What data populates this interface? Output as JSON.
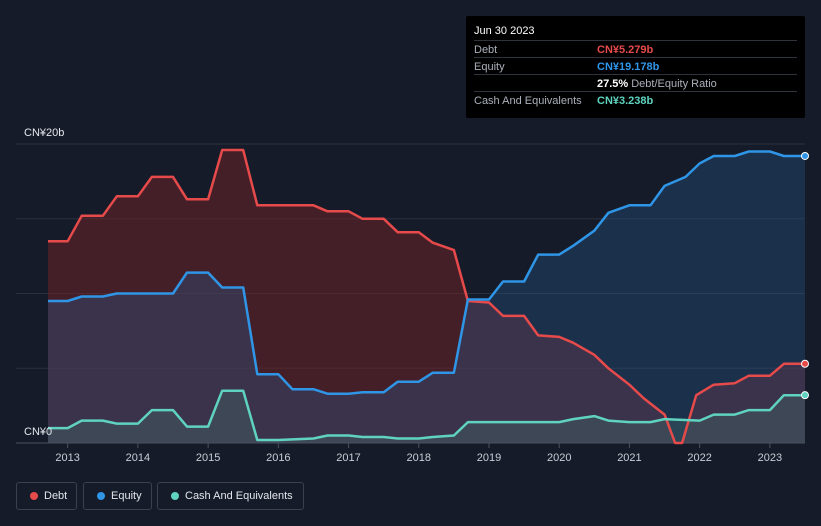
{
  "tooltip": {
    "date": "Jun 30 2023",
    "rows": [
      {
        "label": "Debt",
        "value": "CN¥5.279b",
        "color": "#e64a4a",
        "extra": ""
      },
      {
        "label": "Equity",
        "value": "CN¥19.178b",
        "color": "#2f95e6",
        "extra": ""
      },
      {
        "label": "",
        "value": "27.5%",
        "color": "#ffffff",
        "extra": "Debt/Equity Ratio"
      },
      {
        "label": "Cash And Equivalents",
        "value": "CN¥3.238b",
        "color": "#5fd3c0",
        "extra": ""
      }
    ]
  },
  "legend": [
    {
      "label": "Debt",
      "color": "#e64a4a"
    },
    {
      "label": "Equity",
      "color": "#2f95e6"
    },
    {
      "label": "Cash And Equivalents",
      "color": "#5fd3c0"
    }
  ],
  "chart_data": {
    "type": "area",
    "y_top_label": "CN¥20b",
    "y_bottom_label": "CN¥0",
    "ylim": [
      0,
      20
    ],
    "xlim": [
      2012.72,
      2023.5
    ],
    "x_ticks": [
      "2013",
      "2014",
      "2015",
      "2016",
      "2017",
      "2018",
      "2019",
      "2020",
      "2021",
      "2022",
      "2023"
    ],
    "grid": true,
    "legend_position": "bottom-left",
    "series": [
      {
        "name": "Debt",
        "color": "#e64a4a",
        "points": [
          [
            2012.72,
            13.5
          ],
          [
            2013.0,
            13.5
          ],
          [
            2013.2,
            15.2
          ],
          [
            2013.5,
            15.2
          ],
          [
            2013.7,
            16.5
          ],
          [
            2014.0,
            16.5
          ],
          [
            2014.2,
            17.8
          ],
          [
            2014.5,
            17.8
          ],
          [
            2014.7,
            16.3
          ],
          [
            2015.0,
            16.3
          ],
          [
            2015.2,
            19.6
          ],
          [
            2015.5,
            19.6
          ],
          [
            2015.7,
            15.9
          ],
          [
            2016.0,
            15.9
          ],
          [
            2016.5,
            15.9
          ],
          [
            2016.7,
            15.5
          ],
          [
            2017.0,
            15.5
          ],
          [
            2017.2,
            15.0
          ],
          [
            2017.5,
            15.0
          ],
          [
            2017.7,
            14.1
          ],
          [
            2018.0,
            14.1
          ],
          [
            2018.2,
            13.4
          ],
          [
            2018.5,
            12.9
          ],
          [
            2018.7,
            9.5
          ],
          [
            2019.0,
            9.4
          ],
          [
            2019.2,
            8.5
          ],
          [
            2019.5,
            8.5
          ],
          [
            2019.7,
            7.2
          ],
          [
            2020.0,
            7.1
          ],
          [
            2020.2,
            6.7
          ],
          [
            2020.5,
            5.9
          ],
          [
            2020.7,
            5.0
          ],
          [
            2021.0,
            3.9
          ],
          [
            2021.2,
            3.0
          ],
          [
            2021.5,
            1.9
          ],
          [
            2021.65,
            0.0
          ],
          [
            2021.75,
            0.0
          ],
          [
            2021.95,
            3.2
          ],
          [
            2022.2,
            3.9
          ],
          [
            2022.5,
            4.0
          ],
          [
            2022.7,
            4.5
          ],
          [
            2023.0,
            4.5
          ],
          [
            2023.2,
            5.3
          ],
          [
            2023.5,
            5.3
          ]
        ]
      },
      {
        "name": "Equity",
        "color": "#2f95e6",
        "points": [
          [
            2012.72,
            9.5
          ],
          [
            2013.0,
            9.5
          ],
          [
            2013.2,
            9.8
          ],
          [
            2013.5,
            9.8
          ],
          [
            2013.7,
            10.0
          ],
          [
            2014.0,
            10.0
          ],
          [
            2014.5,
            10.0
          ],
          [
            2014.7,
            11.4
          ],
          [
            2015.0,
            11.4
          ],
          [
            2015.2,
            10.4
          ],
          [
            2015.5,
            10.4
          ],
          [
            2015.7,
            4.6
          ],
          [
            2016.0,
            4.6
          ],
          [
            2016.2,
            3.6
          ],
          [
            2016.5,
            3.6
          ],
          [
            2016.7,
            3.3
          ],
          [
            2017.0,
            3.3
          ],
          [
            2017.2,
            3.4
          ],
          [
            2017.5,
            3.4
          ],
          [
            2017.7,
            4.1
          ],
          [
            2018.0,
            4.1
          ],
          [
            2018.2,
            4.7
          ],
          [
            2018.5,
            4.7
          ],
          [
            2018.7,
            9.6
          ],
          [
            2019.0,
            9.6
          ],
          [
            2019.2,
            10.8
          ],
          [
            2019.5,
            10.8
          ],
          [
            2019.7,
            12.6
          ],
          [
            2020.0,
            12.6
          ],
          [
            2020.2,
            13.2
          ],
          [
            2020.5,
            14.2
          ],
          [
            2020.7,
            15.4
          ],
          [
            2021.0,
            15.9
          ],
          [
            2021.3,
            15.9
          ],
          [
            2021.5,
            17.2
          ],
          [
            2021.8,
            17.8
          ],
          [
            2022.0,
            18.7
          ],
          [
            2022.2,
            19.2
          ],
          [
            2022.5,
            19.2
          ],
          [
            2022.7,
            19.5
          ],
          [
            2023.0,
            19.5
          ],
          [
            2023.2,
            19.2
          ],
          [
            2023.5,
            19.2
          ]
        ]
      },
      {
        "name": "Cash And Equivalents",
        "color": "#5fd3c0",
        "points": [
          [
            2012.72,
            1.0
          ],
          [
            2013.0,
            1.0
          ],
          [
            2013.2,
            1.5
          ],
          [
            2013.5,
            1.5
          ],
          [
            2013.7,
            1.3
          ],
          [
            2014.0,
            1.3
          ],
          [
            2014.2,
            2.2
          ],
          [
            2014.5,
            2.2
          ],
          [
            2014.7,
            1.1
          ],
          [
            2015.0,
            1.1
          ],
          [
            2015.2,
            3.5
          ],
          [
            2015.5,
            3.5
          ],
          [
            2015.7,
            0.2
          ],
          [
            2016.0,
            0.2
          ],
          [
            2016.5,
            0.3
          ],
          [
            2016.7,
            0.5
          ],
          [
            2017.0,
            0.5
          ],
          [
            2017.2,
            0.4
          ],
          [
            2017.5,
            0.4
          ],
          [
            2017.7,
            0.3
          ],
          [
            2018.0,
            0.3
          ],
          [
            2018.2,
            0.4
          ],
          [
            2018.5,
            0.5
          ],
          [
            2018.7,
            1.4
          ],
          [
            2019.0,
            1.4
          ],
          [
            2019.5,
            1.4
          ],
          [
            2019.7,
            1.4
          ],
          [
            2020.0,
            1.4
          ],
          [
            2020.2,
            1.6
          ],
          [
            2020.5,
            1.8
          ],
          [
            2020.7,
            1.5
          ],
          [
            2021.0,
            1.4
          ],
          [
            2021.3,
            1.4
          ],
          [
            2021.5,
            1.6
          ],
          [
            2022.0,
            1.5
          ],
          [
            2022.2,
            1.9
          ],
          [
            2022.5,
            1.9
          ],
          [
            2022.7,
            2.2
          ],
          [
            2023.0,
            2.2
          ],
          [
            2023.2,
            3.2
          ],
          [
            2023.5,
            3.2
          ]
        ]
      }
    ]
  }
}
